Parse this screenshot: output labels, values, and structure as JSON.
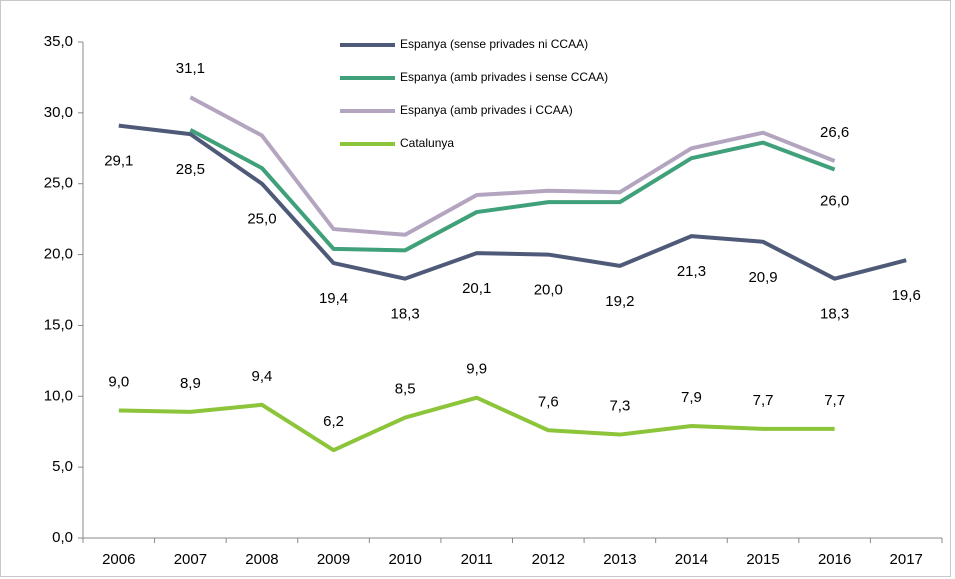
{
  "chart_data": {
    "type": "line",
    "categories": [
      "2006",
      "2007",
      "2008",
      "2009",
      "2010",
      "2011",
      "2012",
      "2013",
      "2014",
      "2015",
      "2016",
      "2017"
    ],
    "series": [
      {
        "name": "Espanya (sense privades ni CCAA)",
        "color": "#4f5a78",
        "values": [
          29.1,
          28.5,
          25.0,
          19.4,
          18.3,
          20.1,
          20.0,
          19.2,
          21.3,
          20.9,
          18.3,
          19.6
        ],
        "value_labels": [
          "29,1",
          "28,5",
          "25,0",
          "19,4",
          "18,3",
          "20,1",
          "20,0",
          "19,2",
          "21,3",
          "20,9",
          "18,3",
          "19,6"
        ]
      },
      {
        "name": "Espanya (amb privades i sense CCAA)",
        "color": "#3fa07a",
        "values": [
          null,
          28.8,
          26.1,
          20.4,
          20.3,
          23.0,
          23.7,
          23.7,
          26.8,
          27.9,
          26.0,
          null
        ],
        "value_labels": [
          null,
          null,
          null,
          null,
          null,
          null,
          null,
          null,
          null,
          null,
          "26,0",
          null
        ]
      },
      {
        "name": "Espanya (amb privades i CCAA)",
        "color": "#b3a5c0",
        "values": [
          null,
          31.1,
          28.4,
          21.8,
          21.4,
          24.2,
          24.5,
          24.4,
          27.5,
          28.6,
          26.6,
          null
        ],
        "value_labels": [
          null,
          "31,1",
          null,
          null,
          null,
          null,
          null,
          null,
          null,
          null,
          "26,6",
          null
        ]
      },
      {
        "name": "Catalunya",
        "color": "#8cc43a",
        "values": [
          9.0,
          8.9,
          9.4,
          6.2,
          8.5,
          9.9,
          7.6,
          7.3,
          7.9,
          7.7,
          7.7,
          null
        ],
        "value_labels": [
          "9,0",
          "8,9",
          "9,4",
          "6,2",
          "8,5",
          "9,9",
          "7,6",
          "7,3",
          "7,9",
          "7,7",
          "7,7",
          null
        ]
      }
    ],
    "ylim": [
      0,
      35
    ],
    "yticks": [
      {
        "value": 0,
        "label": "0,0"
      },
      {
        "value": 5,
        "label": "5,0"
      },
      {
        "value": 10,
        "label": "10,0"
      },
      {
        "value": 15,
        "label": "15,0"
      },
      {
        "value": 20,
        "label": "20,0"
      },
      {
        "value": 25,
        "label": "25,0"
      },
      {
        "value": 30,
        "label": "30,0"
      },
      {
        "value": 35,
        "label": "35,0"
      }
    ],
    "grid": false,
    "legend": "top"
  }
}
